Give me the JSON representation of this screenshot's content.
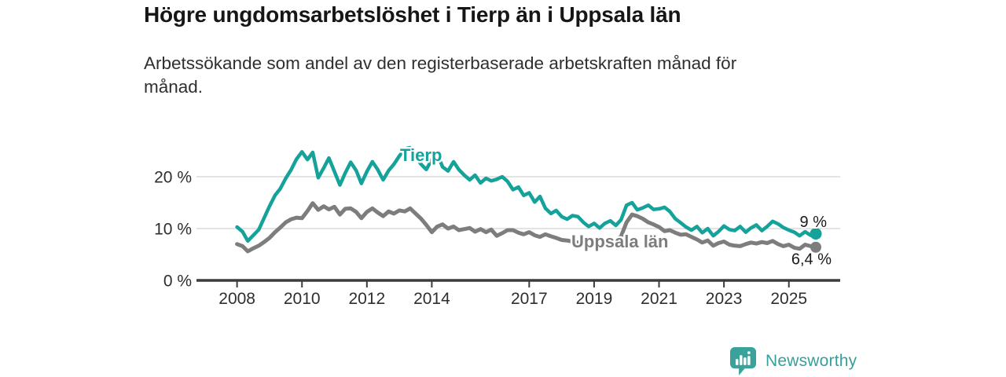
{
  "title": "Högre ungdomsarbetslöshet i Tierp än i Uppsala län",
  "subtitle_lines": [
    "Arbetssökande som andel av den registerbaserade arbetskraften månad för",
    "månad."
  ],
  "branding": {
    "logo_text": "Newsworthy",
    "logo_icon": "newsworthy-bars-bubble-icon",
    "logo_color": "#369f99"
  },
  "colors": {
    "tierp": "#14a29a",
    "uppsala": "#7d7d7d",
    "grid": "#dadada",
    "axis": "#3c3c3c",
    "tick_text": "#2e2e2e",
    "end_label_text": "#1a1a1a",
    "background": "#ffffff"
  },
  "chart_data": {
    "type": "line",
    "title": "Högre ungdomsarbetslöshet i Tierp än i Uppsala län",
    "subtitle": "Arbetssökande som andel av den registerbaserade arbetskraften månad för månad.",
    "xlabel": "",
    "ylabel": "%",
    "xlim": [
      2006.75,
      2026.6
    ],
    "ylim": [
      0,
      26.5
    ],
    "grid": "horizontal",
    "legend_position": "inline-labels",
    "x_ticks": [
      2008,
      2010,
      2012,
      2014,
      2017,
      2019,
      2021,
      2023,
      2025
    ],
    "y_ticks": [
      {
        "value": 0,
        "label": "0 %"
      },
      {
        "value": 10,
        "label": "10 %"
      },
      {
        "value": 20,
        "label": "20 %"
      }
    ],
    "series": [
      {
        "name": "Tierp",
        "color": "#14a29a",
        "end_label": "9 %",
        "end_value": 9.0,
        "points": [
          [
            2008.0,
            10.3
          ],
          [
            2008.17,
            9.4
          ],
          [
            2008.33,
            7.6
          ],
          [
            2008.5,
            8.7
          ],
          [
            2008.67,
            9.8
          ],
          [
            2008.83,
            12.0
          ],
          [
            2009.0,
            14.3
          ],
          [
            2009.17,
            16.4
          ],
          [
            2009.33,
            17.7
          ],
          [
            2009.5,
            19.7
          ],
          [
            2009.67,
            21.4
          ],
          [
            2009.83,
            23.4
          ],
          [
            2010.0,
            24.8
          ],
          [
            2010.17,
            23.3
          ],
          [
            2010.33,
            24.7
          ],
          [
            2010.5,
            19.8
          ],
          [
            2010.67,
            21.7
          ],
          [
            2010.83,
            23.6
          ],
          [
            2011.0,
            21.0
          ],
          [
            2011.17,
            18.4
          ],
          [
            2011.33,
            20.7
          ],
          [
            2011.5,
            22.8
          ],
          [
            2011.67,
            21.2
          ],
          [
            2011.83,
            18.7
          ],
          [
            2012.0,
            21.0
          ],
          [
            2012.17,
            22.9
          ],
          [
            2012.33,
            21.4
          ],
          [
            2012.5,
            19.4
          ],
          [
            2012.67,
            21.2
          ],
          [
            2012.83,
            22.4
          ],
          [
            2013.0,
            24.0
          ],
          [
            2013.17,
            25.4
          ],
          [
            2013.33,
            25.6
          ],
          [
            2013.5,
            23.9
          ],
          [
            2013.67,
            22.4
          ],
          [
            2013.83,
            21.4
          ],
          [
            2014.0,
            23.3
          ],
          [
            2014.17,
            24.4
          ],
          [
            2014.33,
            21.9
          ],
          [
            2014.5,
            21.1
          ],
          [
            2014.67,
            22.9
          ],
          [
            2014.83,
            21.4
          ],
          [
            2015.0,
            20.3
          ],
          [
            2015.17,
            19.4
          ],
          [
            2015.33,
            20.3
          ],
          [
            2015.5,
            18.8
          ],
          [
            2015.67,
            19.7
          ],
          [
            2015.83,
            19.2
          ],
          [
            2016.0,
            19.5
          ],
          [
            2016.17,
            20.0
          ],
          [
            2016.33,
            19.1
          ],
          [
            2016.5,
            17.5
          ],
          [
            2016.67,
            18.0
          ],
          [
            2016.83,
            16.4
          ],
          [
            2017.0,
            16.9
          ],
          [
            2017.17,
            15.1
          ],
          [
            2017.33,
            16.2
          ],
          [
            2017.5,
            13.9
          ],
          [
            2017.67,
            12.9
          ],
          [
            2017.83,
            13.5
          ],
          [
            2018.0,
            12.3
          ],
          [
            2018.17,
            11.8
          ],
          [
            2018.33,
            12.5
          ],
          [
            2018.5,
            12.3
          ],
          [
            2018.67,
            11.2
          ],
          [
            2018.83,
            10.4
          ],
          [
            2019.0,
            11.0
          ],
          [
            2019.17,
            10.1
          ],
          [
            2019.33,
            11.0
          ],
          [
            2019.5,
            11.5
          ],
          [
            2019.67,
            10.6
          ],
          [
            2019.83,
            11.7
          ],
          [
            2020.0,
            14.5
          ],
          [
            2020.17,
            15.0
          ],
          [
            2020.33,
            13.6
          ],
          [
            2020.5,
            14.0
          ],
          [
            2020.67,
            14.5
          ],
          [
            2020.83,
            13.7
          ],
          [
            2021.0,
            13.8
          ],
          [
            2021.17,
            14.1
          ],
          [
            2021.33,
            13.3
          ],
          [
            2021.5,
            11.9
          ],
          [
            2021.67,
            11.1
          ],
          [
            2021.83,
            10.3
          ],
          [
            2022.0,
            9.7
          ],
          [
            2022.17,
            10.4
          ],
          [
            2022.33,
            9.2
          ],
          [
            2022.5,
            10.0
          ],
          [
            2022.67,
            8.6
          ],
          [
            2022.83,
            9.4
          ],
          [
            2023.0,
            10.5
          ],
          [
            2023.17,
            9.8
          ],
          [
            2023.33,
            9.6
          ],
          [
            2023.5,
            10.4
          ],
          [
            2023.67,
            9.3
          ],
          [
            2023.83,
            10.1
          ],
          [
            2024.0,
            10.7
          ],
          [
            2024.17,
            9.6
          ],
          [
            2024.33,
            10.4
          ],
          [
            2024.5,
            11.4
          ],
          [
            2024.67,
            10.9
          ],
          [
            2024.83,
            10.2
          ],
          [
            2025.0,
            9.7
          ],
          [
            2025.17,
            9.3
          ],
          [
            2025.33,
            8.6
          ],
          [
            2025.5,
            9.4
          ],
          [
            2025.67,
            8.7
          ],
          [
            2025.83,
            9.0
          ]
        ]
      },
      {
        "name": "Uppsala län",
        "color": "#7d7d7d",
        "end_label": "6,4 %",
        "end_value": 6.4,
        "points": [
          [
            2008.0,
            7.0
          ],
          [
            2008.17,
            6.6
          ],
          [
            2008.33,
            5.6
          ],
          [
            2008.5,
            6.2
          ],
          [
            2008.67,
            6.7
          ],
          [
            2008.83,
            7.4
          ],
          [
            2009.0,
            8.2
          ],
          [
            2009.17,
            9.3
          ],
          [
            2009.33,
            10.2
          ],
          [
            2009.5,
            11.2
          ],
          [
            2009.67,
            11.8
          ],
          [
            2009.83,
            12.1
          ],
          [
            2010.0,
            12.0
          ],
          [
            2010.17,
            13.4
          ],
          [
            2010.33,
            14.9
          ],
          [
            2010.5,
            13.6
          ],
          [
            2010.67,
            14.3
          ],
          [
            2010.83,
            13.7
          ],
          [
            2011.0,
            14.2
          ],
          [
            2011.17,
            12.7
          ],
          [
            2011.33,
            13.8
          ],
          [
            2011.5,
            13.9
          ],
          [
            2011.67,
            13.2
          ],
          [
            2011.83,
            12.0
          ],
          [
            2012.0,
            13.2
          ],
          [
            2012.17,
            13.9
          ],
          [
            2012.33,
            13.1
          ],
          [
            2012.5,
            12.4
          ],
          [
            2012.67,
            13.3
          ],
          [
            2012.83,
            12.9
          ],
          [
            2013.0,
            13.5
          ],
          [
            2013.17,
            13.3
          ],
          [
            2013.33,
            13.9
          ],
          [
            2013.5,
            12.9
          ],
          [
            2013.67,
            11.9
          ],
          [
            2013.83,
            10.7
          ],
          [
            2014.0,
            9.3
          ],
          [
            2014.17,
            10.4
          ],
          [
            2014.33,
            10.8
          ],
          [
            2014.5,
            10.0
          ],
          [
            2014.67,
            10.4
          ],
          [
            2014.83,
            9.7
          ],
          [
            2015.0,
            9.9
          ],
          [
            2015.17,
            10.1
          ],
          [
            2015.33,
            9.4
          ],
          [
            2015.5,
            9.9
          ],
          [
            2015.67,
            9.3
          ],
          [
            2015.83,
            9.8
          ],
          [
            2016.0,
            8.6
          ],
          [
            2016.17,
            9.1
          ],
          [
            2016.33,
            9.7
          ],
          [
            2016.5,
            9.7
          ],
          [
            2016.67,
            9.2
          ],
          [
            2016.83,
            8.9
          ],
          [
            2017.0,
            9.3
          ],
          [
            2017.17,
            8.7
          ],
          [
            2017.33,
            8.4
          ],
          [
            2017.5,
            8.9
          ],
          [
            2017.67,
            8.5
          ],
          [
            2017.83,
            8.2
          ],
          [
            2018.0,
            7.8
          ],
          [
            2018.17,
            7.7
          ],
          [
            2018.33,
            7.5
          ],
          [
            2018.5,
            7.3
          ],
          [
            2018.67,
            7.3
          ],
          [
            2018.83,
            7.4
          ],
          [
            2019.0,
            7.3
          ],
          [
            2019.17,
            7.5
          ],
          [
            2019.33,
            7.4
          ],
          [
            2019.5,
            7.6
          ],
          [
            2019.67,
            7.8
          ],
          [
            2019.83,
            8.5
          ],
          [
            2020.0,
            11.2
          ],
          [
            2020.17,
            12.7
          ],
          [
            2020.33,
            12.4
          ],
          [
            2020.5,
            11.9
          ],
          [
            2020.67,
            11.2
          ],
          [
            2020.83,
            10.8
          ],
          [
            2021.0,
            10.3
          ],
          [
            2021.17,
            9.5
          ],
          [
            2021.33,
            9.7
          ],
          [
            2021.5,
            9.2
          ],
          [
            2021.67,
            8.8
          ],
          [
            2021.83,
            8.9
          ],
          [
            2022.0,
            8.4
          ],
          [
            2022.17,
            7.9
          ],
          [
            2022.33,
            7.3
          ],
          [
            2022.5,
            7.7
          ],
          [
            2022.67,
            6.7
          ],
          [
            2022.83,
            7.2
          ],
          [
            2023.0,
            7.5
          ],
          [
            2023.17,
            6.9
          ],
          [
            2023.33,
            6.7
          ],
          [
            2023.5,
            6.6
          ],
          [
            2023.67,
            7.0
          ],
          [
            2023.83,
            7.3
          ],
          [
            2024.0,
            7.1
          ],
          [
            2024.17,
            7.4
          ],
          [
            2024.33,
            7.2
          ],
          [
            2024.5,
            7.6
          ],
          [
            2024.67,
            7.0
          ],
          [
            2024.83,
            6.6
          ],
          [
            2025.0,
            6.9
          ],
          [
            2025.17,
            6.3
          ],
          [
            2025.33,
            6.1
          ],
          [
            2025.5,
            6.9
          ],
          [
            2025.67,
            6.6
          ],
          [
            2025.83,
            6.4
          ]
        ]
      }
    ]
  }
}
